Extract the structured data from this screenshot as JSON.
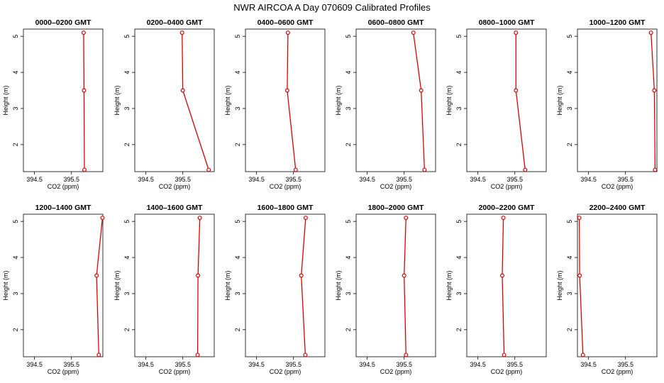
{
  "figure": {
    "title": "NWR AIRCOA A  Day 070609  Calibrated Profiles"
  },
  "colors": {
    "profile_line": "#e00000",
    "axes": "#000000",
    "background": "#ffffff"
  },
  "chart_data": [
    {
      "type": "line",
      "title": "0000–0200 GMT",
      "xlabel": "CO2 (ppm)",
      "ylabel": "Height (m)",
      "xlim": [
        394.2,
        396.35
      ],
      "ylim": [
        1.25,
        5.2
      ],
      "xticks": [
        394.5,
        395.5
      ],
      "yticks": [
        2,
        3,
        4,
        5
      ],
      "grid": false,
      "series": [
        {
          "x": [
            395.85,
            395.84,
            395.83
          ],
          "y": [
            1.3,
            3.5,
            5.1
          ]
        }
      ]
    },
    {
      "type": "line",
      "title": "0200–0400 GMT",
      "xlabel": "CO2 (ppm)",
      "ylabel": "Height (m)",
      "xlim": [
        394.2,
        396.35
      ],
      "ylim": [
        1.25,
        5.2
      ],
      "xticks": [
        394.5,
        395.5
      ],
      "yticks": [
        2,
        3,
        4,
        5
      ],
      "grid": false,
      "series": [
        {
          "x": [
            396.2,
            395.5,
            395.48
          ],
          "y": [
            1.3,
            3.5,
            5.1
          ]
        }
      ]
    },
    {
      "type": "line",
      "title": "0400–0600 GMT",
      "xlabel": "CO2 (ppm)",
      "ylabel": "Height (m)",
      "xlim": [
        394.2,
        396.35
      ],
      "ylim": [
        1.25,
        5.2
      ],
      "xticks": [
        394.5,
        395.5
      ],
      "yticks": [
        2,
        3,
        4,
        5
      ],
      "grid": false,
      "series": [
        {
          "x": [
            395.56,
            395.33,
            395.35
          ],
          "y": [
            1.3,
            3.5,
            5.1
          ]
        }
      ]
    },
    {
      "type": "line",
      "title": "0600–0800 GMT",
      "xlabel": "CO2 (ppm)",
      "ylabel": "Height (m)",
      "xlim": [
        394.2,
        396.35
      ],
      "ylim": [
        1.25,
        5.2
      ],
      "xticks": [
        394.5,
        395.5
      ],
      "yticks": [
        2,
        3,
        4,
        5
      ],
      "grid": false,
      "series": [
        {
          "x": [
            396.05,
            395.96,
            395.75
          ],
          "y": [
            1.3,
            3.5,
            5.1
          ]
        }
      ]
    },
    {
      "type": "line",
      "title": "0800–1000 GMT",
      "xlabel": "CO2 (ppm)",
      "ylabel": "Height (m)",
      "xlim": [
        394.2,
        396.35
      ],
      "ylim": [
        1.25,
        5.2
      ],
      "xticks": [
        394.5,
        395.5
      ],
      "yticks": [
        2,
        3,
        4,
        5
      ],
      "grid": false,
      "series": [
        {
          "x": [
            395.78,
            395.53,
            395.53
          ],
          "y": [
            1.3,
            3.5,
            5.1
          ]
        }
      ]
    },
    {
      "type": "line",
      "title": "1000–1200 GMT",
      "xlabel": "CO2 (ppm)",
      "ylabel": "Height (m)",
      "xlim": [
        394.2,
        396.35
      ],
      "ylim": [
        1.25,
        5.2
      ],
      "xticks": [
        394.5,
        395.5
      ],
      "yticks": [
        2,
        3,
        4,
        5
      ],
      "grid": false,
      "series": [
        {
          "x": [
            396.3,
            396.28,
            396.19
          ],
          "y": [
            1.3,
            3.5,
            5.1
          ]
        }
      ]
    },
    {
      "type": "line",
      "title": "1200–1400 GMT",
      "xlabel": "CO2 (ppm)",
      "ylabel": "Height (m)",
      "xlim": [
        394.2,
        396.35
      ],
      "ylim": [
        1.25,
        5.2
      ],
      "xticks": [
        394.5,
        395.5
      ],
      "yticks": [
        2,
        3,
        4,
        5
      ],
      "grid": false,
      "series": [
        {
          "x": [
            396.24,
            396.18,
            396.34
          ],
          "y": [
            1.3,
            3.5,
            5.1
          ]
        }
      ]
    },
    {
      "type": "line",
      "title": "1400–1600 GMT",
      "xlabel": "CO2 (ppm)",
      "ylabel": "Height (m)",
      "xlim": [
        394.2,
        396.35
      ],
      "ylim": [
        1.25,
        5.2
      ],
      "xticks": [
        394.5,
        395.5
      ],
      "yticks": [
        2,
        3,
        4,
        5
      ],
      "grid": false,
      "series": [
        {
          "x": [
            395.9,
            395.91,
            395.96
          ],
          "y": [
            1.3,
            3.5,
            5.1
          ]
        }
      ]
    },
    {
      "type": "line",
      "title": "1600–1800 GMT",
      "xlabel": "CO2 (ppm)",
      "ylabel": "Height (m)",
      "xlim": [
        394.2,
        396.35
      ],
      "ylim": [
        1.25,
        5.2
      ],
      "xticks": [
        394.5,
        395.5
      ],
      "yticks": [
        2,
        3,
        4,
        5
      ],
      "grid": false,
      "series": [
        {
          "x": [
            395.82,
            395.71,
            395.83
          ],
          "y": [
            1.3,
            3.5,
            5.1
          ]
        }
      ]
    },
    {
      "type": "line",
      "title": "1800–2000 GMT",
      "xlabel": "CO2 (ppm)",
      "ylabel": "Height (m)",
      "xlim": [
        394.2,
        396.35
      ],
      "ylim": [
        1.25,
        5.2
      ],
      "xticks": [
        394.5,
        395.5
      ],
      "yticks": [
        2,
        3,
        4,
        5
      ],
      "grid": false,
      "series": [
        {
          "x": [
            395.55,
            395.5,
            395.55
          ],
          "y": [
            1.3,
            3.5,
            5.1
          ]
        }
      ]
    },
    {
      "type": "line",
      "title": "2000–2200 GMT",
      "xlabel": "CO2 (ppm)",
      "ylabel": "Height (m)",
      "xlim": [
        394.2,
        396.35
      ],
      "ylim": [
        1.25,
        5.2
      ],
      "xticks": [
        394.5,
        395.5
      ],
      "yticks": [
        2,
        3,
        4,
        5
      ],
      "grid": false,
      "series": [
        {
          "x": [
            395.21,
            395.16,
            395.19
          ],
          "y": [
            1.3,
            3.5,
            5.1
          ]
        }
      ]
    },
    {
      "type": "line",
      "title": "2200–2400 GMT",
      "xlabel": "CO2 (ppm)",
      "ylabel": "Height (m)",
      "xlim": [
        394.2,
        396.35
      ],
      "ylim": [
        1.25,
        5.2
      ],
      "xticks": [
        394.5,
        395.5
      ],
      "yticks": [
        2,
        3,
        4,
        5
      ],
      "grid": false,
      "series": [
        {
          "x": [
            394.35,
            394.26,
            394.25
          ],
          "y": [
            1.3,
            3.5,
            5.1
          ]
        }
      ]
    }
  ]
}
